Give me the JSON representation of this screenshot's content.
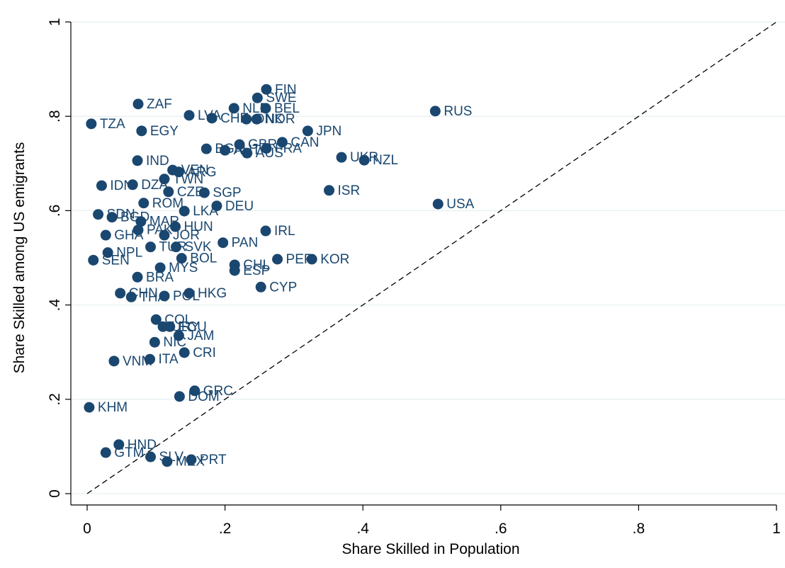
{
  "chart_data": {
    "type": "scatter",
    "x_label": "Share Skilled in Population",
    "y_label": "Share Skilled among US emigrants",
    "color": "#1a476f",
    "grid": true,
    "xlim": [
      0,
      1
    ],
    "ylim": [
      0,
      1
    ],
    "xticks": [
      0,
      {
        "value": 0.2,
        "label": ".2"
      },
      {
        "value": 0.4,
        "label": ".4"
      },
      {
        "value": 0.6,
        "label": ".6"
      },
      {
        "value": 0.8,
        "label": ".8"
      },
      1
    ],
    "yticks": [
      0,
      {
        "value": 0.2,
        "label": ".2"
      },
      {
        "value": 0.4,
        "label": ".4"
      },
      {
        "value": 0.6,
        "label": ".6"
      },
      {
        "value": 0.8,
        "label": ".8"
      },
      1
    ],
    "labels": [
      "FIN",
      "SWE",
      "NLD",
      "BEL",
      "RUS",
      "ZAF",
      "LVA",
      "CHE",
      "DNK",
      "NOR",
      "TZA",
      "EGY",
      "JPN",
      "GBR",
      "FRA",
      "CAN",
      "BGR",
      "AUT",
      "AUS",
      "UKR",
      "NZL",
      "IND",
      "VEN",
      "ARG",
      "TWN",
      "IDN",
      "DZA",
      "CZE",
      "ROM",
      "SGP",
      "ISR",
      "USA",
      "DEU",
      "LKA",
      "SDN",
      "BGD",
      "MAR",
      "PAK",
      "HUN",
      "JOR",
      "GHA",
      "IRL",
      "PAN",
      "NPL",
      "TUR",
      "SVK",
      "SEN",
      "BOL",
      "PER",
      "KOR",
      "MYS",
      "CHL",
      "ESP",
      "BRA",
      "CYP",
      "CHN",
      "THA",
      "POL",
      "HKG",
      "COL",
      "URY",
      "ECU",
      "JAM",
      "NIC",
      "CRI",
      "ITA",
      "VNM",
      "GRC",
      "DOM",
      "KHM",
      "HND",
      "GTM",
      "SLV",
      "MEX",
      "PRT"
    ],
    "x": [
      0.26,
      0.247,
      0.213,
      0.259,
      0.505,
      0.074,
      0.148,
      0.181,
      0.231,
      0.246,
      0.006,
      0.079,
      0.32,
      0.221,
      0.26,
      0.283,
      0.173,
      0.2,
      0.232,
      0.369,
      0.402,
      0.073,
      0.124,
      0.133,
      0.112,
      0.021,
      0.066,
      0.118,
      0.082,
      0.17,
      0.351,
      0.509,
      0.188,
      0.141,
      0.016,
      0.036,
      0.078,
      0.074,
      0.128,
      0.112,
      0.027,
      0.259,
      0.197,
      0.03,
      0.092,
      0.129,
      0.009,
      0.137,
      0.276,
      0.326,
      0.106,
      0.214,
      0.214,
      0.073,
      0.252,
      0.048,
      0.064,
      0.112,
      0.148,
      0.1,
      0.11,
      0.12,
      0.133,
      0.098,
      0.141,
      0.091,
      0.039,
      0.156,
      0.134,
      0.003,
      0.046,
      0.027,
      0.092,
      0.116,
      0.151
    ],
    "values": [
      0.857,
      0.839,
      0.817,
      0.817,
      0.811,
      0.826,
      0.802,
      0.796,
      0.794,
      0.794,
      0.784,
      0.769,
      0.769,
      0.74,
      0.732,
      0.745,
      0.731,
      0.728,
      0.722,
      0.713,
      0.707,
      0.706,
      0.686,
      0.682,
      0.667,
      0.653,
      0.655,
      0.64,
      0.616,
      0.638,
      0.643,
      0.614,
      0.61,
      0.599,
      0.592,
      0.586,
      0.577,
      0.559,
      0.566,
      0.548,
      0.548,
      0.557,
      0.532,
      0.511,
      0.523,
      0.523,
      0.495,
      0.499,
      0.497,
      0.497,
      0.479,
      0.485,
      0.473,
      0.459,
      0.438,
      0.425,
      0.417,
      0.419,
      0.425,
      0.369,
      0.354,
      0.354,
      0.335,
      0.321,
      0.299,
      0.285,
      0.281,
      0.218,
      0.206,
      0.183,
      0.104,
      0.087,
      0.078,
      0.068,
      0.072
    ]
  }
}
